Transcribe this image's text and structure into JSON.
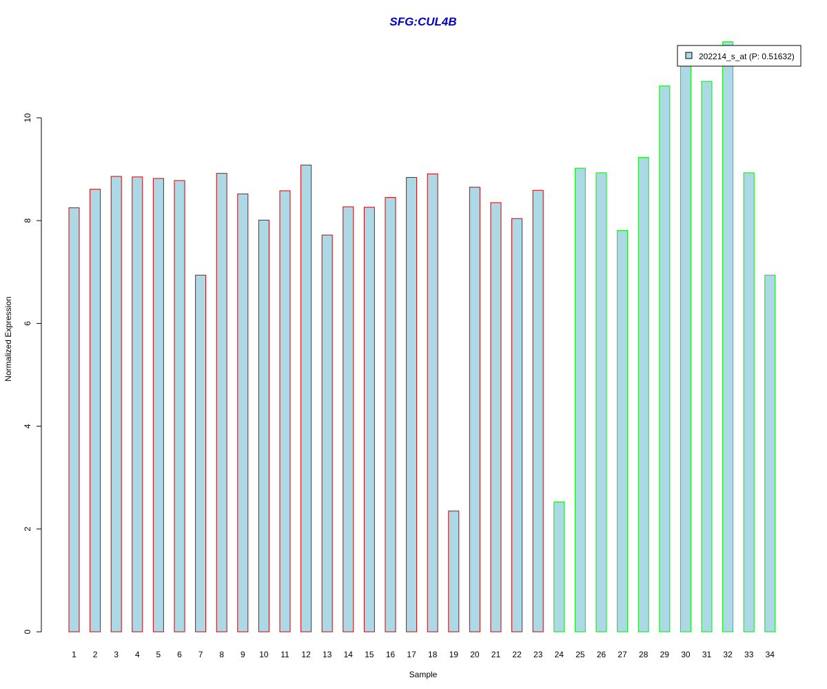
{
  "chart_data": {
    "type": "bar",
    "title": "SFG:CUL4B",
    "xlabel": "Sample",
    "ylabel": "Normalized Expression",
    "categories": [
      "1",
      "2",
      "3",
      "4",
      "5",
      "6",
      "7",
      "8",
      "9",
      "10",
      "11",
      "12",
      "13",
      "14",
      "15",
      "16",
      "17",
      "18",
      "19",
      "20",
      "21",
      "22",
      "23",
      "24",
      "25",
      "26",
      "27",
      "28",
      "29",
      "30",
      "31",
      "32",
      "33",
      "34"
    ],
    "values": [
      8.25,
      8.61,
      8.86,
      8.85,
      8.82,
      8.78,
      6.94,
      8.92,
      8.52,
      8.01,
      8.58,
      9.08,
      7.72,
      8.27,
      8.26,
      8.45,
      8.84,
      8.91,
      2.35,
      8.65,
      8.35,
      8.04,
      8.59,
      2.53,
      9.02,
      8.93,
      7.81,
      9.23,
      10.62,
      11.03,
      10.71,
      11.48,
      8.93,
      6.94
    ],
    "groups": [
      "red",
      "red",
      "red",
      "red",
      "red",
      "red",
      "red",
      "red",
      "red",
      "red",
      "red",
      "red",
      "red",
      "red",
      "red",
      "red",
      "red",
      "red",
      "red",
      "red",
      "red",
      "red",
      "red",
      "green",
      "green",
      "green",
      "green",
      "green",
      "green",
      "green",
      "green",
      "green",
      "green",
      "green"
    ],
    "yticks": [
      0,
      2,
      4,
      6,
      8,
      10
    ],
    "ylim": [
      0,
      11.5
    ],
    "legend": {
      "position": "top-right",
      "label": "202214_s_at (P: 0.51632)"
    },
    "colors": {
      "title": "#0000cc",
      "bar_fill": "#add8e6",
      "border_group1": "#cc0000",
      "border_group2": "#00ee00"
    },
    "grid": false
  }
}
